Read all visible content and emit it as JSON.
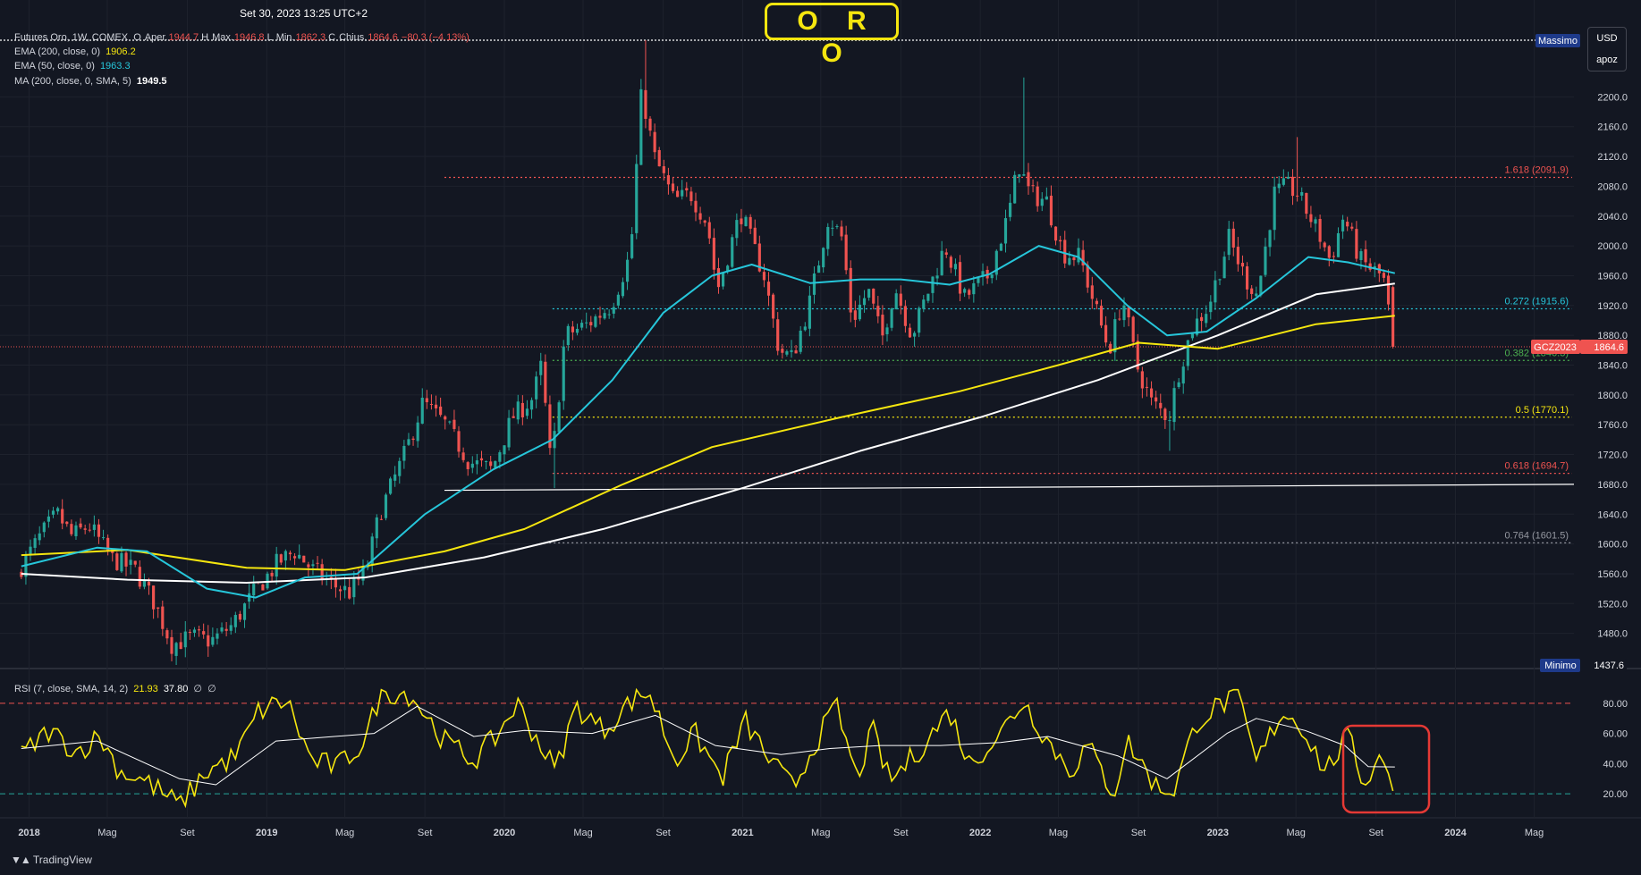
{
  "header": {
    "date": "Set 30, 2023 13:25 UTC+2",
    "title_badge": "O R O",
    "symbol_line": "Futures Oro, 1W, COMEX",
    "ohlc": [
      {
        "label": "O",
        "value": ""
      },
      {
        "label": "Aper.",
        "value": "1944.7"
      },
      {
        "label": "H",
        "value": ""
      },
      {
        "label": "Max.",
        "value": "1946.8"
      },
      {
        "label": "L",
        "value": ""
      },
      {
        "label": "Min.",
        "value": "1862.3"
      },
      {
        "label": "C",
        "value": ""
      },
      {
        "label": "Chius.",
        "value": "1864.6"
      },
      {
        "label": "",
        "value": "−80.3 (−4.13%)"
      }
    ],
    "currency": "USD",
    "currency_sub": "apoz"
  },
  "indicators": [
    {
      "label": "EMA (200, close, 0)",
      "value": "1906.2",
      "color": "#f5e60f"
    },
    {
      "label": "EMA (50, close, 0)",
      "value": "1963.3",
      "color": "#26c6da"
    },
    {
      "label": "MA (200, close, 0, SMA, 5)",
      "value": "1949.5",
      "color": "#ffffff"
    }
  ],
  "colors": {
    "up": "#26a69a",
    "down": "#ef5350",
    "ema200": "#f5e60f",
    "ema50": "#26c6da",
    "ma200": "#ffffff",
    "rsi": "#f5e60f",
    "rsi_ma": "#ffffff",
    "background": "#131722"
  },
  "chart_data": [
    {
      "type": "candlestick",
      "title": "O R O",
      "x_range": [
        "2017-12",
        "2024-07"
      ],
      "ylim": [
        1437.6,
        2276
      ],
      "y_ticks": [
        1480,
        1520,
        1560,
        1600,
        1640,
        1680,
        1720,
        1760,
        1800,
        1840,
        1880,
        1920,
        1960,
        2000,
        2040,
        2080,
        2120,
        2160,
        2200
      ],
      "x_ticks": [
        {
          "label": "2018",
          "date": "2018-01"
        },
        {
          "label": "Mag",
          "date": "2018-05"
        },
        {
          "label": "Set",
          "date": "2018-09"
        },
        {
          "label": "2019",
          "date": "2019-01"
        },
        {
          "label": "Mag",
          "date": "2019-05"
        },
        {
          "label": "Set",
          "date": "2019-09"
        },
        {
          "label": "2020",
          "date": "2020-01"
        },
        {
          "label": "Mag",
          "date": "2020-05"
        },
        {
          "label": "Set",
          "date": "2020-09"
        },
        {
          "label": "2021",
          "date": "2021-01"
        },
        {
          "label": "Mag",
          "date": "2021-05"
        },
        {
          "label": "Set",
          "date": "2021-09"
        },
        {
          "label": "2022",
          "date": "2022-01"
        },
        {
          "label": "Mag",
          "date": "2022-05"
        },
        {
          "label": "Set",
          "date": "2022-09"
        },
        {
          "label": "2023",
          "date": "2023-01"
        },
        {
          "label": "Mag",
          "date": "2023-05"
        },
        {
          "label": "Set",
          "date": "2023-09"
        },
        {
          "label": "2024",
          "date": "2024-01"
        },
        {
          "label": "Mag",
          "date": "2024-05"
        }
      ],
      "price_path": [
        [
          "2017-12-20",
          1560
        ],
        [
          "2018-01-25",
          1610
        ],
        [
          "2018-02-20",
          1640
        ],
        [
          "2018-03-15",
          1610
        ],
        [
          "2018-04-10",
          1625
        ],
        [
          "2018-05-15",
          1580
        ],
        [
          "2018-06-20",
          1565
        ],
        [
          "2018-07-20",
          1520
        ],
        [
          "2018-08-15",
          1465
        ],
        [
          "2018-09-15",
          1475
        ],
        [
          "2018-10-15",
          1470
        ],
        [
          "2018-11-15",
          1490
        ],
        [
          "2018-12-20",
          1535
        ],
        [
          "2019-01-25",
          1575
        ],
        [
          "2019-02-20",
          1590
        ],
        [
          "2019-03-20",
          1565
        ],
        [
          "2019-04-20",
          1545
        ],
        [
          "2019-05-15",
          1535
        ],
        [
          "2019-06-10",
          1565
        ],
        [
          "2019-06-30",
          1640
        ],
        [
          "2019-08-10",
          1725
        ],
        [
          "2019-09-05",
          1790
        ],
        [
          "2019-10-10",
          1760
        ],
        [
          "2019-11-15",
          1710
        ],
        [
          "2019-12-20",
          1700
        ],
        [
          "2020-01-20",
          1770
        ],
        [
          "2020-02-20",
          1795
        ],
        [
          "2020-03-05",
          1840
        ],
        [
          "2020-03-20",
          1700
        ],
        [
          "2020-04-10",
          1880
        ],
        [
          "2020-05-15",
          1895
        ],
        [
          "2020-06-20",
          1920
        ],
        [
          "2020-07-20",
          1990
        ],
        [
          "2020-08-06",
          2210
        ],
        [
          "2020-08-25",
          2120
        ],
        [
          "2020-09-25",
          2060
        ],
        [
          "2020-10-20",
          2070
        ],
        [
          "2020-11-15",
          2030
        ],
        [
          "2020-11-30",
          1940
        ],
        [
          "2021-01-05",
          2045
        ],
        [
          "2021-02-10",
          1960
        ],
        [
          "2021-03-05",
          1860
        ],
        [
          "2021-03-25",
          1850
        ],
        [
          "2021-04-20",
          1920
        ],
        [
          "2021-05-20",
          2040
        ],
        [
          "2021-06-10",
          2010
        ],
        [
          "2021-06-25",
          1900
        ],
        [
          "2021-07-20",
          1940
        ],
        [
          "2021-08-10",
          1875
        ],
        [
          "2021-08-30",
          1945
        ],
        [
          "2021-09-25",
          1880
        ],
        [
          "2021-11-15",
          2000
        ],
        [
          "2021-12-15",
          1930
        ],
        [
          "2022-01-20",
          1960
        ],
        [
          "2022-02-20",
          2040
        ],
        [
          "2022-03-08",
          2110
        ],
        [
          "2022-03-25",
          2070
        ],
        [
          "2022-04-20",
          2060
        ],
        [
          "2022-05-15",
          1990
        ],
        [
          "2022-06-10",
          1985
        ],
        [
          "2022-07-10",
          1900
        ],
        [
          "2022-07-25",
          1860
        ],
        [
          "2022-08-15",
          1930
        ],
        [
          "2022-09-05",
          1840
        ],
        [
          "2022-09-28",
          1790
        ],
        [
          "2022-10-25",
          1770
        ],
        [
          "2022-11-10",
          1835
        ],
        [
          "2022-11-30",
          1890
        ],
        [
          "2022-12-25",
          1920
        ],
        [
          "2023-01-25",
          2010
        ],
        [
          "2023-02-20",
          1955
        ],
        [
          "2023-03-10",
          1935
        ],
        [
          "2023-04-05",
          2070
        ],
        [
          "2023-04-25",
          2080
        ],
        [
          "2023-05-10",
          2070
        ],
        [
          "2023-06-10",
          2020
        ],
        [
          "2023-06-30",
          1980
        ],
        [
          "2023-07-20",
          2040
        ],
        [
          "2023-08-15",
          1980
        ],
        [
          "2023-09-15",
          1960
        ],
        [
          "2023-09-25",
          1945
        ],
        [
          "2023-09-30",
          1864.6
        ]
      ],
      "extremes": [
        {
          "date": "2020-08-06",
          "high": 2276
        },
        {
          "date": "2022-03-08",
          "high": 2226
        },
        {
          "date": "2023-05-04",
          "high": 2146
        },
        {
          "date": "2018-08-16",
          "low": 1437.6
        },
        {
          "date": "2022-10-20",
          "low": 1725
        },
        {
          "date": "2020-03-19",
          "low": 1675
        }
      ],
      "ema50": [
        [
          "2017-12-20",
          1570
        ],
        [
          "2018-04-15",
          1595
        ],
        [
          "2018-07-01",
          1590
        ],
        [
          "2018-10-01",
          1540
        ],
        [
          "2018-12-15",
          1528
        ],
        [
          "2019-03-01",
          1555
        ],
        [
          "2019-05-20",
          1560
        ],
        [
          "2019-09-01",
          1640
        ],
        [
          "2019-12-15",
          1700
        ],
        [
          "2020-03-15",
          1740
        ],
        [
          "2020-06-15",
          1820
        ],
        [
          "2020-09-01",
          1910
        ],
        [
          "2020-11-15",
          1960
        ],
        [
          "2021-01-15",
          1975
        ],
        [
          "2021-04-15",
          1950
        ],
        [
          "2021-07-01",
          1955
        ],
        [
          "2021-09-01",
          1955
        ],
        [
          "2021-11-15",
          1948
        ],
        [
          "2022-01-15",
          1962
        ],
        [
          "2022-04-01",
          2000
        ],
        [
          "2022-06-01",
          1985
        ],
        [
          "2022-08-15",
          1920
        ],
        [
          "2022-10-15",
          1880
        ],
        [
          "2022-12-15",
          1885
        ],
        [
          "2023-03-01",
          1930
        ],
        [
          "2023-05-20",
          1985
        ],
        [
          "2023-07-20",
          1978
        ],
        [
          "2023-09-30",
          1963.3
        ]
      ],
      "ema200": [
        [
          "2017-12-20",
          1585
        ],
        [
          "2018-06-01",
          1592
        ],
        [
          "2018-12-01",
          1568
        ],
        [
          "2019-05-01",
          1565
        ],
        [
          "2019-10-01",
          1590
        ],
        [
          "2020-02-01",
          1620
        ],
        [
          "2020-07-01",
          1680
        ],
        [
          "2020-11-15",
          1730
        ],
        [
          "2021-06-01",
          1770
        ],
        [
          "2021-12-01",
          1805
        ],
        [
          "2022-05-01",
          1840
        ],
        [
          "2022-09-01",
          1870
        ],
        [
          "2023-01-01",
          1862
        ],
        [
          "2023-06-01",
          1895
        ],
        [
          "2023-09-30",
          1906.2
        ]
      ],
      "ma200": [
        [
          "2017-12-20",
          1560
        ],
        [
          "2018-06-01",
          1552
        ],
        [
          "2018-12-01",
          1548
        ],
        [
          "2019-06-01",
          1555
        ],
        [
          "2019-12-01",
          1582
        ],
        [
          "2020-06-01",
          1620
        ],
        [
          "2021-01-01",
          1675
        ],
        [
          "2021-07-01",
          1725
        ],
        [
          "2022-01-01",
          1770
        ],
        [
          "2022-07-01",
          1820
        ],
        [
          "2023-01-01",
          1880
        ],
        [
          "2023-06-01",
          1935
        ],
        [
          "2023-09-30",
          1949.5
        ]
      ],
      "fibonacci": [
        {
          "label": "1.618 (2091.9)",
          "value": 2091.9,
          "color": "#ef5350"
        },
        {
          "label": "0.272 (1915.6)",
          "value": 1915.6,
          "color": "#26c6da"
        },
        {
          "label": "0.382 (1846.3)",
          "value": 1846.3,
          "color": "#4caf50"
        },
        {
          "label": "0.5 (1770.1)",
          "value": 1770.1,
          "color": "#f5e60f"
        },
        {
          "label": "0.618 (1694.7)",
          "value": 1694.7,
          "color": "#ef5350"
        },
        {
          "label": "0.764 (1601.5)",
          "value": 1601.5,
          "color": "#9598a1"
        }
      ],
      "max_line": {
        "label": "Massimo",
        "value": 2276
      },
      "min_line": {
        "label": "Minimo",
        "value": 1437.6
      },
      "last_price": {
        "label": "GCZ2023",
        "value": 1864.6
      },
      "trendline": {
        "from": [
          "2019-10-01",
          1672
        ],
        "to": [
          "2024-07-01",
          1680
        ]
      }
    },
    {
      "type": "line",
      "title": "RSI (7, close, SMA, 14, 2)",
      "values_header": [
        "21.93",
        "37.80",
        "∅",
        "∅"
      ],
      "ylim": [
        10,
        90
      ],
      "y_ticks": [
        20,
        40,
        60,
        80
      ],
      "bands": [
        80,
        20
      ],
      "rsi": [
        [
          "2017-12-20",
          45
        ],
        [
          "2018-02-01",
          62
        ],
        [
          "2018-03-15",
          48
        ],
        [
          "2018-04-20",
          58
        ],
        [
          "2018-05-20",
          35
        ],
        [
          "2018-07-01",
          28
        ],
        [
          "2018-08-20",
          12
        ],
        [
          "2018-10-01",
          35
        ],
        [
          "2018-11-15",
          45
        ],
        [
          "2018-12-20",
          75
        ],
        [
          "2019-02-01",
          82
        ],
        [
          "2019-03-10",
          42
        ],
        [
          "2019-04-20",
          38
        ],
        [
          "2019-06-01",
          55
        ],
        [
          "2019-06-25",
          88
        ],
        [
          "2019-08-10",
          86
        ],
        [
          "2019-10-01",
          55
        ],
        [
          "2019-11-15",
          42
        ],
        [
          "2019-12-20",
          58
        ],
        [
          "2020-01-20",
          80
        ],
        [
          "2020-03-20",
          35
        ],
        [
          "2020-04-20",
          78
        ],
        [
          "2020-06-01",
          62
        ],
        [
          "2020-07-15",
          82
        ],
        [
          "2020-08-10",
          88
        ],
        [
          "2020-09-20",
          42
        ],
        [
          "2020-10-20",
          60
        ],
        [
          "2020-11-30",
          30
        ],
        [
          "2021-01-05",
          68
        ],
        [
          "2021-02-15",
          40
        ],
        [
          "2021-03-20",
          24
        ],
        [
          "2021-04-20",
          52
        ],
        [
          "2021-05-25",
          78
        ],
        [
          "2021-06-25",
          30
        ],
        [
          "2021-07-20",
          62
        ],
        [
          "2021-08-15",
          28
        ],
        [
          "2021-10-01",
          50
        ],
        [
          "2021-11-15",
          75
        ],
        [
          "2021-12-15",
          40
        ],
        [
          "2022-02-01",
          60
        ],
        [
          "2022-03-08",
          82
        ],
        [
          "2022-04-15",
          55
        ],
        [
          "2022-05-20",
          35
        ],
        [
          "2022-06-15",
          52
        ],
        [
          "2022-07-25",
          20
        ],
        [
          "2022-08-15",
          55
        ],
        [
          "2022-09-28",
          25
        ],
        [
          "2022-10-25",
          22
        ],
        [
          "2022-11-30",
          68
        ],
        [
          "2023-01-01",
          78
        ],
        [
          "2023-02-01",
          85
        ],
        [
          "2023-03-01",
          40
        ],
        [
          "2023-04-10",
          75
        ],
        [
          "2023-05-10",
          65
        ],
        [
          "2023-06-15",
          35
        ],
        [
          "2023-07-20",
          58
        ],
        [
          "2023-08-15",
          25
        ],
        [
          "2023-09-01",
          45
        ],
        [
          "2023-09-20",
          38
        ],
        [
          "2023-09-30",
          21.93
        ]
      ],
      "rsi_ma": [
        [
          "2017-12-20",
          50
        ],
        [
          "2018-04-15",
          55
        ],
        [
          "2018-08-20",
          30
        ],
        [
          "2018-10-15",
          26
        ],
        [
          "2019-01-15",
          55
        ],
        [
          "2019-04-15",
          58
        ],
        [
          "2019-06-15",
          60
        ],
        [
          "2019-08-20",
          78
        ],
        [
          "2019-11-15",
          58
        ],
        [
          "2020-02-01",
          62
        ],
        [
          "2020-05-15",
          60
        ],
        [
          "2020-08-20",
          72
        ],
        [
          "2020-11-20",
          52
        ],
        [
          "2021-03-01",
          46
        ],
        [
          "2021-05-15",
          50
        ],
        [
          "2021-08-01",
          52
        ],
        [
          "2021-11-01",
          52
        ],
        [
          "2022-02-01",
          54
        ],
        [
          "2022-04-15",
          58
        ],
        [
          "2022-08-01",
          45
        ],
        [
          "2022-10-15",
          30
        ],
        [
          "2023-01-15",
          60
        ],
        [
          "2023-03-01",
          70
        ],
        [
          "2023-05-15",
          62
        ],
        [
          "2023-07-15",
          52
        ],
        [
          "2023-08-20",
          38
        ],
        [
          "2023-09-30",
          37.8
        ]
      ]
    }
  ],
  "footer": {
    "brand": "TradingView"
  }
}
